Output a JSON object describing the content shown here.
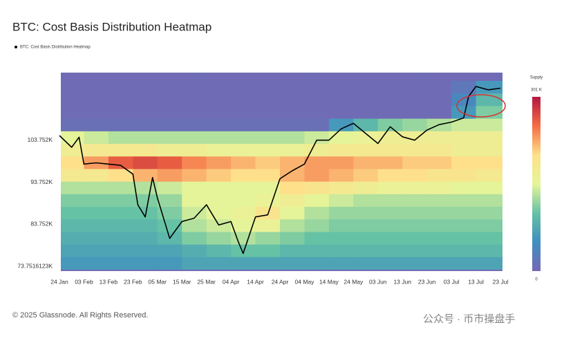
{
  "chart_data": {
    "type": "heatmap",
    "title": "BTC: Cost Basis Distribution Heatmap",
    "ylim": [
      72.6,
      119.9
    ],
    "yticks": [
      {
        "value": 73.7516123,
        "label": "73.7516123K"
      },
      {
        "value": 83.752,
        "label": "83.752K"
      },
      {
        "value": 93.752,
        "label": "93.752K"
      },
      {
        "value": 103.752,
        "label": "103.752K"
      }
    ],
    "xticks": [
      "24 Jan",
      "03 Feb",
      "13 Feb",
      "23 Feb",
      "05 Mar",
      "15 Mar",
      "25 Mar",
      "04 Apr",
      "14 Apr",
      "24 Apr",
      "04 May",
      "14 May",
      "24 May",
      "03 Jun",
      "13 Jun",
      "23 Jun",
      "03 Jul",
      "13 Jul",
      "23 Jul"
    ],
    "ybins": [
      73,
      76,
      79,
      82,
      85,
      88,
      91,
      94,
      97,
      100,
      103,
      106,
      109,
      112,
      115,
      118,
      121
    ],
    "zlim": [
      0,
      301
    ],
    "colorscale": [
      "#7468b4",
      "#3f8fc0",
      "#66c2a5",
      "#e6f598",
      "#fee08b",
      "#f46d43",
      "#b2183f"
    ],
    "z": [
      [
        60,
        60,
        60,
        60,
        60,
        70,
        70,
        70,
        70,
        70,
        70,
        70,
        70,
        70,
        70,
        70,
        70,
        70
      ],
      [
        70,
        70,
        70,
        70,
        70,
        80,
        90,
        100,
        100,
        90,
        90,
        90,
        90,
        90,
        90,
        90,
        90,
        90
      ],
      [
        80,
        80,
        80,
        80,
        90,
        110,
        120,
        130,
        120,
        110,
        100,
        100,
        100,
        100,
        100,
        100,
        100,
        100
      ],
      [
        90,
        90,
        90,
        90,
        100,
        130,
        140,
        150,
        160,
        130,
        120,
        110,
        110,
        110,
        110,
        110,
        110,
        110
      ],
      [
        100,
        100,
        100,
        100,
        110,
        140,
        150,
        160,
        190,
        150,
        130,
        120,
        120,
        120,
        120,
        120,
        120,
        120
      ],
      [
        110,
        110,
        110,
        110,
        120,
        150,
        150,
        150,
        160,
        170,
        150,
        140,
        130,
        130,
        130,
        130,
        130,
        130
      ],
      [
        130,
        130,
        130,
        130,
        140,
        150,
        150,
        150,
        150,
        200,
        190,
        180,
        170,
        160,
        160,
        160,
        150,
        150
      ],
      [
        180,
        180,
        200,
        220,
        230,
        220,
        210,
        200,
        200,
        220,
        230,
        220,
        210,
        200,
        200,
        190,
        190,
        180
      ],
      [
        200,
        230,
        260,
        270,
        260,
        240,
        230,
        220,
        210,
        220,
        230,
        230,
        220,
        220,
        210,
        210,
        200,
        200
      ],
      [
        170,
        180,
        180,
        180,
        170,
        170,
        160,
        160,
        160,
        160,
        170,
        180,
        180,
        180,
        180,
        180,
        170,
        170
      ],
      [
        150,
        140,
        130,
        130,
        130,
        130,
        130,
        130,
        130,
        130,
        140,
        150,
        160,
        170,
        170,
        170,
        170,
        170
      ],
      [
        10,
        10,
        10,
        10,
        10,
        10,
        10,
        10,
        10,
        10,
        10,
        60,
        90,
        110,
        120,
        130,
        140,
        140
      ],
      [
        5,
        5,
        5,
        5,
        5,
        5,
        5,
        5,
        5,
        5,
        5,
        5,
        5,
        5,
        5,
        5,
        60,
        110
      ],
      [
        5,
        5,
        5,
        5,
        5,
        5,
        5,
        5,
        5,
        5,
        5,
        5,
        5,
        5,
        5,
        5,
        40,
        90
      ],
      [
        5,
        5,
        5,
        5,
        5,
        5,
        5,
        5,
        5,
        5,
        5,
        5,
        5,
        5,
        5,
        5,
        20,
        60
      ],
      [
        5,
        5,
        5,
        5,
        5,
        5,
        5,
        5,
        5,
        5,
        5,
        5,
        5,
        5,
        5,
        5,
        5,
        5
      ]
    ],
    "series": [
      {
        "name": "BTC: Cost Basis Distribution Heatmap",
        "color": "#000000",
        "x": [
          "24 Jan",
          "29 Jan",
          "01 Feb",
          "03 Feb",
          "08 Feb",
          "13 Feb",
          "18 Feb",
          "23 Feb",
          "25 Feb",
          "28 Feb",
          "03 Mar",
          "05 Mar",
          "10 Mar",
          "15 Mar",
          "20 Mar",
          "25 Mar",
          "30 Mar",
          "04 Apr",
          "07 Apr",
          "09 Apr",
          "14 Apr",
          "19 Apr",
          "24 Apr",
          "29 Apr",
          "04 May",
          "09 May",
          "14 May",
          "19 May",
          "24 May",
          "29 May",
          "03 Jun",
          "08 Jun",
          "13 Jun",
          "18 Jun",
          "23 Jun",
          "28 Jun",
          "03 Jul",
          "08 Jul",
          "10 Jul",
          "13 Jul",
          "18 Jul",
          "23 Jul"
        ],
        "values": [
          104.9,
          102.1,
          104.5,
          98.1,
          98.4,
          98.1,
          97.8,
          95.7,
          88.4,
          85.5,
          94.9,
          90,
          80.4,
          84.4,
          85.2,
          88.4,
          83.6,
          84.4,
          79.6,
          76.8,
          85.5,
          86,
          94.6,
          96.5,
          98.1,
          103.8,
          103.8,
          106.5,
          107.8,
          105.4,
          103,
          107,
          104.6,
          103.8,
          106.2,
          107.5,
          108.1,
          109.1,
          114.2,
          116.6,
          115.8,
          116.2
        ]
      }
    ],
    "colorbar": {
      "title": "Supply",
      "ticks": [
        {
          "value": 301,
          "label": "301 K"
        },
        0
      ]
    },
    "footer": "© 2025 Glassnode. All Rights Reserved.",
    "watermark": "公众号 · 币市操盘手"
  }
}
